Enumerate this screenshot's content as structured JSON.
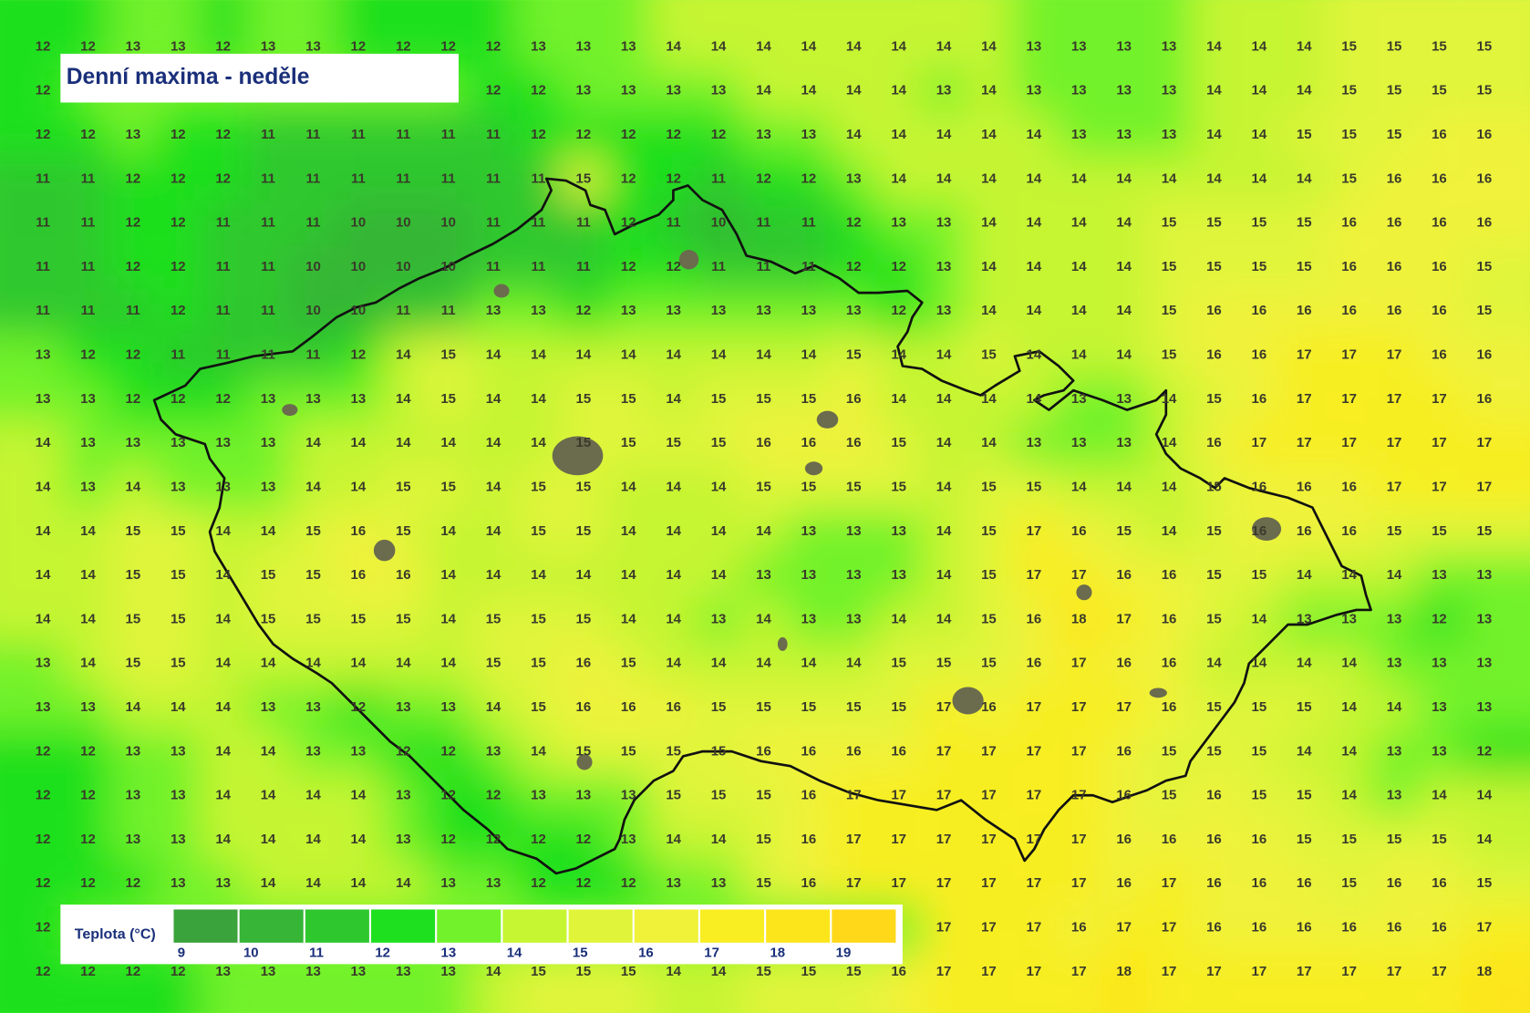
{
  "title": "Denní maxima - neděle",
  "grid": {
    "rows": [
      [
        12,
        12,
        13,
        13,
        12,
        13,
        13,
        12,
        12,
        12,
        12,
        13,
        13,
        13,
        14,
        14,
        14,
        14,
        14,
        14,
        14,
        14,
        13,
        13,
        13,
        13,
        14,
        14,
        14,
        15,
        15,
        15,
        15
      ],
      [
        12,
        null,
        null,
        null,
        null,
        null,
        null,
        null,
        null,
        null,
        12,
        12,
        13,
        13,
        13,
        13,
        14,
        14,
        14,
        14,
        13,
        14,
        13,
        13,
        13,
        13,
        14,
        14,
        14,
        15,
        15,
        15,
        15
      ],
      [
        12,
        12,
        13,
        12,
        12,
        11,
        11,
        11,
        11,
        11,
        11,
        12,
        12,
        12,
        12,
        12,
        13,
        13,
        14,
        14,
        14,
        14,
        14,
        13,
        13,
        13,
        14,
        14,
        15,
        15,
        15,
        16,
        16
      ],
      [
        11,
        11,
        12,
        12,
        12,
        11,
        11,
        11,
        11,
        11,
        11,
        11,
        15,
        12,
        12,
        11,
        12,
        12,
        13,
        14,
        14,
        14,
        14,
        14,
        14,
        14,
        14,
        14,
        14,
        15,
        16,
        16,
        16
      ],
      [
        11,
        11,
        12,
        12,
        11,
        11,
        11,
        10,
        10,
        10,
        11,
        11,
        11,
        12,
        11,
        10,
        11,
        11,
        12,
        13,
        13,
        14,
        14,
        14,
        14,
        15,
        15,
        15,
        15,
        16,
        16,
        16,
        16
      ],
      [
        11,
        11,
        12,
        12,
        11,
        11,
        10,
        10,
        10,
        10,
        11,
        11,
        11,
        12,
        12,
        11,
        11,
        11,
        12,
        12,
        13,
        14,
        14,
        14,
        14,
        15,
        15,
        15,
        15,
        16,
        16,
        16,
        15
      ],
      [
        11,
        11,
        11,
        12,
        11,
        11,
        10,
        10,
        11,
        11,
        13,
        13,
        12,
        13,
        13,
        13,
        13,
        13,
        13,
        12,
        13,
        14,
        14,
        14,
        14,
        15,
        16,
        16,
        16,
        16,
        16,
        16,
        15
      ],
      [
        13,
        12,
        12,
        11,
        11,
        11,
        11,
        12,
        14,
        15,
        14,
        14,
        14,
        14,
        14,
        14,
        14,
        14,
        15,
        14,
        14,
        15,
        14,
        14,
        14,
        15,
        16,
        16,
        17,
        17,
        17,
        16,
        16
      ],
      [
        13,
        13,
        12,
        12,
        12,
        13,
        13,
        13,
        14,
        15,
        14,
        14,
        15,
        15,
        14,
        15,
        15,
        15,
        16,
        14,
        14,
        14,
        14,
        13,
        13,
        14,
        15,
        16,
        17,
        17,
        17,
        17,
        16
      ],
      [
        14,
        13,
        13,
        13,
        13,
        13,
        14,
        14,
        14,
        14,
        14,
        14,
        15,
        15,
        15,
        15,
        16,
        16,
        16,
        15,
        14,
        14,
        13,
        13,
        13,
        14,
        16,
        17,
        17,
        17,
        17,
        17,
        17
      ],
      [
        14,
        13,
        14,
        13,
        13,
        13,
        14,
        14,
        15,
        15,
        14,
        15,
        15,
        14,
        14,
        14,
        15,
        15,
        15,
        15,
        14,
        15,
        15,
        14,
        14,
        14,
        15,
        16,
        16,
        16,
        17,
        17,
        17
      ],
      [
        14,
        14,
        15,
        15,
        14,
        14,
        15,
        16,
        15,
        14,
        14,
        15,
        15,
        14,
        14,
        14,
        14,
        13,
        13,
        13,
        14,
        15,
        17,
        16,
        15,
        14,
        15,
        16,
        16,
        16,
        15,
        15,
        15
      ],
      [
        14,
        14,
        15,
        15,
        14,
        15,
        15,
        16,
        16,
        14,
        14,
        14,
        14,
        14,
        14,
        14,
        13,
        13,
        13,
        13,
        14,
        15,
        17,
        17,
        16,
        16,
        15,
        15,
        14,
        14,
        14,
        13,
        13
      ],
      [
        14,
        14,
        15,
        15,
        14,
        15,
        15,
        15,
        15,
        14,
        15,
        15,
        15,
        14,
        14,
        13,
        14,
        13,
        13,
        14,
        14,
        15,
        16,
        18,
        17,
        16,
        15,
        14,
        13,
        13,
        13,
        12,
        13
      ],
      [
        13,
        14,
        15,
        15,
        14,
        14,
        14,
        14,
        14,
        14,
        15,
        15,
        16,
        15,
        14,
        14,
        14,
        14,
        14,
        15,
        15,
        15,
        16,
        17,
        16,
        16,
        14,
        14,
        14,
        14,
        13,
        13,
        13
      ],
      [
        13,
        13,
        14,
        14,
        14,
        13,
        13,
        12,
        13,
        13,
        14,
        15,
        16,
        16,
        16,
        15,
        15,
        15,
        15,
        15,
        17,
        16,
        17,
        17,
        17,
        16,
        15,
        15,
        15,
        14,
        14,
        13,
        13
      ],
      [
        12,
        12,
        13,
        13,
        14,
        14,
        13,
        13,
        12,
        12,
        13,
        14,
        15,
        15,
        15,
        15,
        16,
        16,
        16,
        16,
        17,
        17,
        17,
        17,
        16,
        15,
        15,
        15,
        14,
        14,
        13,
        13,
        12
      ],
      [
        12,
        12,
        13,
        13,
        14,
        14,
        14,
        14,
        13,
        12,
        12,
        13,
        13,
        13,
        15,
        15,
        15,
        16,
        17,
        17,
        17,
        17,
        17,
        17,
        16,
        15,
        16,
        15,
        15,
        14,
        13,
        14,
        14
      ],
      [
        12,
        12,
        13,
        13,
        14,
        14,
        14,
        14,
        13,
        12,
        12,
        12,
        12,
        13,
        14,
        14,
        15,
        16,
        17,
        17,
        17,
        17,
        17,
        17,
        16,
        16,
        16,
        16,
        15,
        15,
        15,
        15,
        14
      ],
      [
        12,
        12,
        12,
        13,
        13,
        14,
        14,
        14,
        14,
        13,
        13,
        12,
        12,
        12,
        13,
        13,
        15,
        16,
        17,
        17,
        17,
        17,
        17,
        17,
        16,
        17,
        16,
        16,
        16,
        15,
        16,
        16,
        15
      ],
      [
        12,
        null,
        null,
        null,
        null,
        null,
        null,
        null,
        null,
        null,
        null,
        null,
        null,
        null,
        null,
        null,
        null,
        null,
        null,
        null,
        17,
        17,
        17,
        16,
        17,
        17,
        16,
        16,
        16,
        16,
        16,
        16,
        17
      ],
      [
        12,
        12,
        12,
        12,
        13,
        13,
        13,
        13,
        13,
        13,
        14,
        15,
        15,
        15,
        14,
        14,
        15,
        15,
        15,
        16,
        17,
        17,
        17,
        17,
        18,
        17,
        17,
        17,
        17,
        17,
        17,
        17,
        18
      ]
    ]
  },
  "legend": {
    "title": "Teplota (°C)",
    "items": [
      {
        "value": 9,
        "color": "#3ba33b"
      },
      {
        "value": 10,
        "color": "#36b536"
      },
      {
        "value": 11,
        "color": "#2ec82e"
      },
      {
        "value": 12,
        "color": "#1fe01f"
      },
      {
        "value": 13,
        "color": "#72f22a"
      },
      {
        "value": 14,
        "color": "#c6f532"
      },
      {
        "value": 15,
        "color": "#e0f53a"
      },
      {
        "value": 16,
        "color": "#f0f23a"
      },
      {
        "value": 17,
        "color": "#f8ee22"
      },
      {
        "value": 18,
        "color": "#fde51c"
      },
      {
        "value": 19,
        "color": "#ffd81a"
      }
    ]
  }
}
